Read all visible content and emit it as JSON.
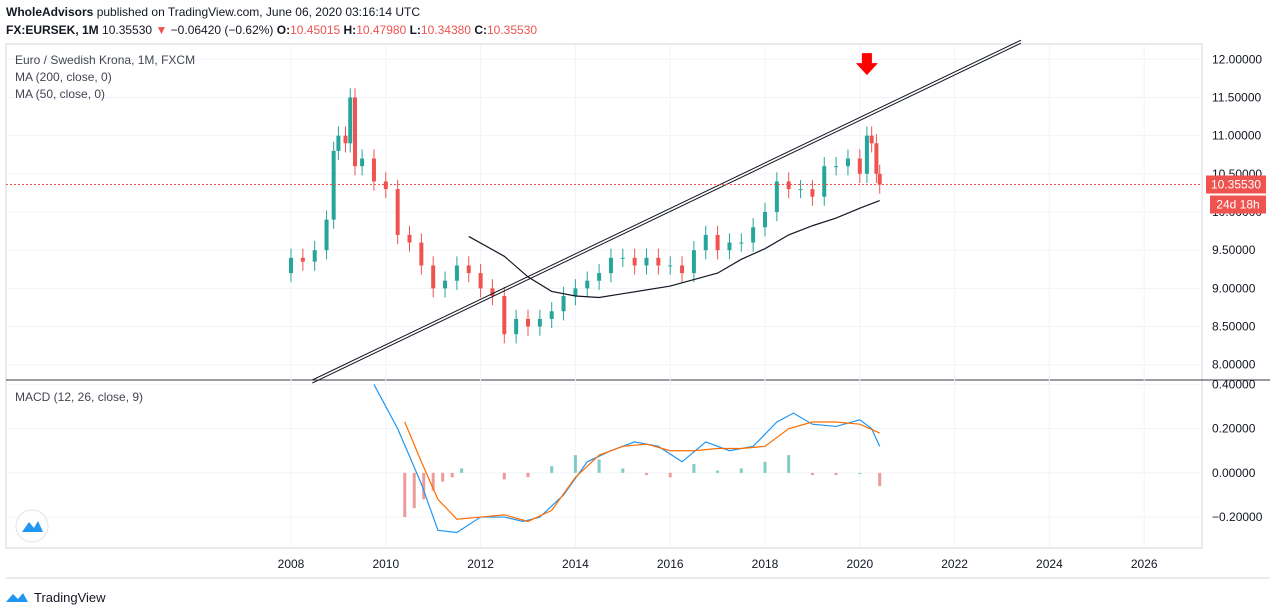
{
  "header": {
    "publisher": "WholeAdvisors",
    "published_text": "published on TradingView.com, June 06, 2020 03:16:14 UTC",
    "symbol": "FX:EURSEK, 1M",
    "last": "10.35530",
    "change_arrow": "▼",
    "change": "−0.06420 (−0.62%)",
    "o_label": "O:",
    "o": "10.45015",
    "h_label": "H:",
    "h": "10.47980",
    "l_label": "L:",
    "l": "10.34380",
    "c_label": "C:",
    "c": "10.35530"
  },
  "legend": {
    "title": "Euro / Swedish Krona, 1M, FXCM",
    "ma200": "MA (200, close, 0)",
    "ma50": "MA (50, close, 0)",
    "macd": "MACD (12, 26, close, 9)"
  },
  "price_badge": "10.35530",
  "countdown_badge": "24d 18h",
  "footer": {
    "brand": "TradingView"
  },
  "colors": {
    "up": "#26a69a",
    "down": "#ef5350",
    "macd": "#2196f3",
    "signal": "#ff6d00",
    "arrow": "#ff0000"
  },
  "chart_data": {
    "type": "candlestick",
    "x_ticks": [
      "2008",
      "2010",
      "2012",
      "2014",
      "2016",
      "2018",
      "2020",
      "2022",
      "2024",
      "2026"
    ],
    "y_ticks_price": [
      "12.00000",
      "11.50000",
      "11.00000",
      "10.50000",
      "10.00000",
      "9.50000",
      "9.00000",
      "8.50000",
      "8.00000"
    ],
    "y_ticks_macd": [
      "0.40000",
      "0.20000",
      "0.00000",
      "−0.20000"
    ],
    "price_ylim": [
      7.8,
      12.2
    ],
    "macd_ylim": [
      -0.34,
      0.42
    ],
    "price_series": [
      [
        2007.75,
        9.2
      ],
      [
        2008.0,
        9.4
      ],
      [
        2008.25,
        9.35
      ],
      [
        2008.5,
        9.5
      ],
      [
        2008.75,
        9.9
      ],
      [
        2008.9,
        10.8
      ],
      [
        2009.0,
        11.0
      ],
      [
        2009.15,
        10.9
      ],
      [
        2009.25,
        11.5
      ],
      [
        2009.35,
        10.6
      ],
      [
        2009.5,
        10.7
      ],
      [
        2009.75,
        10.4
      ],
      [
        2010.0,
        10.3
      ],
      [
        2010.25,
        9.7
      ],
      [
        2010.5,
        9.6
      ],
      [
        2010.75,
        9.3
      ],
      [
        2011.0,
        9.0
      ],
      [
        2011.25,
        9.1
      ],
      [
        2011.5,
        9.3
      ],
      [
        2011.75,
        9.2
      ],
      [
        2012.0,
        9.0
      ],
      [
        2012.25,
        8.9
      ],
      [
        2012.5,
        8.4
      ],
      [
        2012.75,
        8.6
      ],
      [
        2013.0,
        8.5
      ],
      [
        2013.25,
        8.6
      ],
      [
        2013.5,
        8.7
      ],
      [
        2013.75,
        8.9
      ],
      [
        2014.0,
        9.0
      ],
      [
        2014.25,
        9.1
      ],
      [
        2014.5,
        9.2
      ],
      [
        2014.75,
        9.4
      ],
      [
        2015.0,
        9.4
      ],
      [
        2015.25,
        9.3
      ],
      [
        2015.5,
        9.4
      ],
      [
        2015.75,
        9.3
      ],
      [
        2016.0,
        9.3
      ],
      [
        2016.25,
        9.2
      ],
      [
        2016.5,
        9.5
      ],
      [
        2016.75,
        9.7
      ],
      [
        2017.0,
        9.5
      ],
      [
        2017.25,
        9.6
      ],
      [
        2017.5,
        9.6
      ],
      [
        2017.75,
        9.8
      ],
      [
        2018.0,
        10.0
      ],
      [
        2018.25,
        10.4
      ],
      [
        2018.5,
        10.3
      ],
      [
        2018.75,
        10.3
      ],
      [
        2019.0,
        10.2
      ],
      [
        2019.25,
        10.6
      ],
      [
        2019.5,
        10.6
      ],
      [
        2019.75,
        10.7
      ],
      [
        2020.0,
        10.5
      ],
      [
        2020.15,
        11.0
      ],
      [
        2020.25,
        10.9
      ],
      [
        2020.35,
        10.5
      ],
      [
        2020.42,
        10.36
      ]
    ],
    "ma200": [
      [
        2011.75,
        9.68
      ],
      [
        2012.5,
        9.42
      ],
      [
        2013.0,
        9.15
      ],
      [
        2013.5,
        8.96
      ],
      [
        2014.0,
        8.9
      ],
      [
        2014.5,
        8.88
      ],
      [
        2015.0,
        8.93
      ],
      [
        2016.0,
        9.03
      ],
      [
        2017.0,
        9.2
      ],
      [
        2017.5,
        9.38
      ],
      [
        2018.0,
        9.52
      ],
      [
        2018.5,
        9.7
      ],
      [
        2019.0,
        9.82
      ],
      [
        2019.5,
        9.92
      ],
      [
        2020.0,
        10.05
      ],
      [
        2020.42,
        10.15
      ]
    ],
    "ma50": [],
    "trendline": [
      [
        2008.45,
        7.8
      ],
      [
        2023.4,
        12.25
      ]
    ],
    "macd": [
      [
        2009.75,
        0.4
      ],
      [
        2010.25,
        0.2
      ],
      [
        2010.75,
        -0.05
      ],
      [
        2011.1,
        -0.26
      ],
      [
        2011.5,
        -0.27
      ],
      [
        2012.0,
        -0.2
      ],
      [
        2012.5,
        -0.2
      ],
      [
        2012.9,
        -0.22
      ],
      [
        2013.25,
        -0.2
      ],
      [
        2013.75,
        -0.1
      ],
      [
        2014.25,
        0.05
      ],
      [
        2014.75,
        0.1
      ],
      [
        2015.25,
        0.14
      ],
      [
        2015.75,
        0.12
      ],
      [
        2016.25,
        0.05
      ],
      [
        2016.75,
        0.14
      ],
      [
        2017.25,
        0.1
      ],
      [
        2017.75,
        0.12
      ],
      [
        2018.25,
        0.23
      ],
      [
        2018.6,
        0.27
      ],
      [
        2019.0,
        0.22
      ],
      [
        2019.5,
        0.21
      ],
      [
        2020.0,
        0.24
      ],
      [
        2020.25,
        0.2
      ],
      [
        2020.42,
        0.12
      ]
    ],
    "signal": [
      [
        2010.4,
        0.23
      ],
      [
        2010.75,
        0.05
      ],
      [
        2011.1,
        -0.12
      ],
      [
        2011.5,
        -0.21
      ],
      [
        2012.0,
        -0.2
      ],
      [
        2012.5,
        -0.19
      ],
      [
        2013.0,
        -0.22
      ],
      [
        2013.5,
        -0.17
      ],
      [
        2014.0,
        -0.02
      ],
      [
        2014.5,
        0.08
      ],
      [
        2015.0,
        0.12
      ],
      [
        2015.5,
        0.13
      ],
      [
        2016.0,
        0.1
      ],
      [
        2016.5,
        0.1
      ],
      [
        2017.0,
        0.11
      ],
      [
        2017.5,
        0.11
      ],
      [
        2018.0,
        0.12
      ],
      [
        2018.5,
        0.2
      ],
      [
        2019.0,
        0.23
      ],
      [
        2019.5,
        0.23
      ],
      [
        2020.0,
        0.22
      ],
      [
        2020.42,
        0.18
      ]
    ],
    "histogram": [
      [
        2010.4,
        -0.2
      ],
      [
        2010.6,
        -0.16
      ],
      [
        2010.8,
        -0.12
      ],
      [
        2011.0,
        -0.08
      ],
      [
        2011.2,
        -0.04
      ],
      [
        2011.4,
        -0.02
      ],
      [
        2011.6,
        0.02
      ],
      [
        2012.5,
        -0.03
      ],
      [
        2013.0,
        -0.02
      ],
      [
        2013.5,
        0.03
      ],
      [
        2014.0,
        0.08
      ],
      [
        2014.5,
        0.06
      ],
      [
        2015.0,
        0.02
      ],
      [
        2015.5,
        -0.01
      ],
      [
        2016.0,
        -0.02
      ],
      [
        2016.5,
        0.04
      ],
      [
        2017.0,
        0.01
      ],
      [
        2017.5,
        0.02
      ],
      [
        2018.0,
        0.05
      ],
      [
        2018.5,
        0.08
      ],
      [
        2019.0,
        -0.01
      ],
      [
        2019.5,
        -0.01
      ],
      [
        2020.0,
        0.0
      ],
      [
        2020.42,
        -0.06
      ]
    ]
  }
}
